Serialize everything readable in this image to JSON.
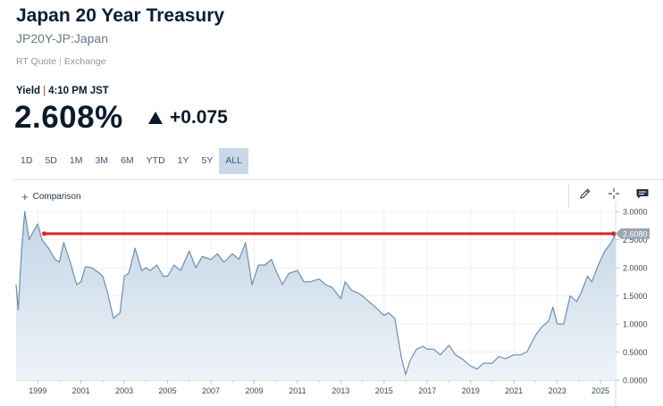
{
  "header": {
    "title": "Japan 20 Year Treasury",
    "symbol": "JP20Y-JP:Japan",
    "quote_type": "RT Quote",
    "exchange": "Exchange"
  },
  "quote": {
    "label": "Yield",
    "time": "4:10 PM JST",
    "price": "2.608%",
    "change": "+0.075",
    "direction": "up"
  },
  "range_tabs": {
    "items": [
      "1D",
      "5D",
      "1M",
      "3M",
      "6M",
      "YTD",
      "1Y",
      "5Y",
      "ALL"
    ],
    "selected": "ALL"
  },
  "toolbar": {
    "comparison_label": "Comparison",
    "icons": [
      "pencil-icon",
      "crosshair-icon",
      "chat-flag-icon"
    ]
  },
  "colors": {
    "line": "#6e8fae",
    "area_top": "#c2d5e6",
    "area_bottom": "#eef3f8",
    "reference_line": "#e0242b",
    "price_tag": "#9aa6b2"
  },
  "chart_data": {
    "type": "area",
    "x_ticks": [
      "1999",
      "2001",
      "2003",
      "2005",
      "2007",
      "2009",
      "2011",
      "2013",
      "2015",
      "2017",
      "2019",
      "2021",
      "2023",
      "2025"
    ],
    "y_ticks": [
      "3.0000",
      "2.5000",
      "2.0000",
      "1.5000",
      "1.0000",
      "0.5000",
      "0.0000"
    ],
    "ylim": [
      0,
      3.05
    ],
    "xlim": [
      1998.0,
      2025.7
    ],
    "current_value_label": "2.6080",
    "reference_value": 2.608,
    "grid": true,
    "series": [
      {
        "x": [
          1998.0,
          1998.1,
          1998.25,
          1998.4,
          1998.6,
          1998.8,
          1999.0,
          1999.2,
          1999.5,
          1999.8,
          2000.0,
          2000.2,
          2000.5,
          2000.8,
          2001.0,
          2001.2,
          2001.5,
          2001.8,
          2002.0,
          2002.2,
          2002.5,
          2002.8,
          2003.0,
          2003.2,
          2003.5,
          2003.8,
          2004.0,
          2004.2,
          2004.5,
          2004.8,
          2005.0,
          2005.3,
          2005.6,
          2006.0,
          2006.3,
          2006.6,
          2007.0,
          2007.3,
          2007.6,
          2008.0,
          2008.3,
          2008.6,
          2008.9,
          2009.2,
          2009.5,
          2009.8,
          2010.0,
          2010.3,
          2010.6,
          2011.0,
          2011.3,
          2011.6,
          2012.0,
          2012.3,
          2012.6,
          2013.0,
          2013.2,
          2013.5,
          2013.8,
          2014.0,
          2014.3,
          2014.6,
          2015.0,
          2015.2,
          2015.5,
          2015.8,
          2016.0,
          2016.2,
          2016.5,
          2016.8,
          2017.0,
          2017.3,
          2017.6,
          2018.0,
          2018.3,
          2018.6,
          2019.0,
          2019.3,
          2019.6,
          2020.0,
          2020.3,
          2020.6,
          2021.0,
          2021.3,
          2021.6,
          2022.0,
          2022.3,
          2022.6,
          2022.8,
          2023.0,
          2023.3,
          2023.6,
          2023.9,
          2024.1,
          2024.4,
          2024.6,
          2024.9,
          2025.2,
          2025.5,
          2025.7
        ],
        "values": [
          1.7,
          1.25,
          2.3,
          3.0,
          2.5,
          2.65,
          2.78,
          2.5,
          2.35,
          2.15,
          2.1,
          2.45,
          2.1,
          1.7,
          1.75,
          2.02,
          2.0,
          1.92,
          1.85,
          1.6,
          1.1,
          1.2,
          1.85,
          1.9,
          2.35,
          1.95,
          2.0,
          1.95,
          2.05,
          1.85,
          1.85,
          2.05,
          1.95,
          2.3,
          2.0,
          2.2,
          2.15,
          2.25,
          2.1,
          2.25,
          2.15,
          2.45,
          1.7,
          2.05,
          2.05,
          2.15,
          1.95,
          1.7,
          1.9,
          1.95,
          1.75,
          1.75,
          1.8,
          1.7,
          1.65,
          1.45,
          1.75,
          1.6,
          1.55,
          1.5,
          1.4,
          1.3,
          1.15,
          1.2,
          1.1,
          0.4,
          0.1,
          0.35,
          0.55,
          0.6,
          0.55,
          0.55,
          0.45,
          0.62,
          0.45,
          0.38,
          0.25,
          0.2,
          0.3,
          0.3,
          0.42,
          0.38,
          0.45,
          0.45,
          0.5,
          0.8,
          0.95,
          1.05,
          1.3,
          1.0,
          1.0,
          1.5,
          1.4,
          1.55,
          1.85,
          1.75,
          2.05,
          2.3,
          2.45,
          2.608
        ]
      }
    ]
  }
}
